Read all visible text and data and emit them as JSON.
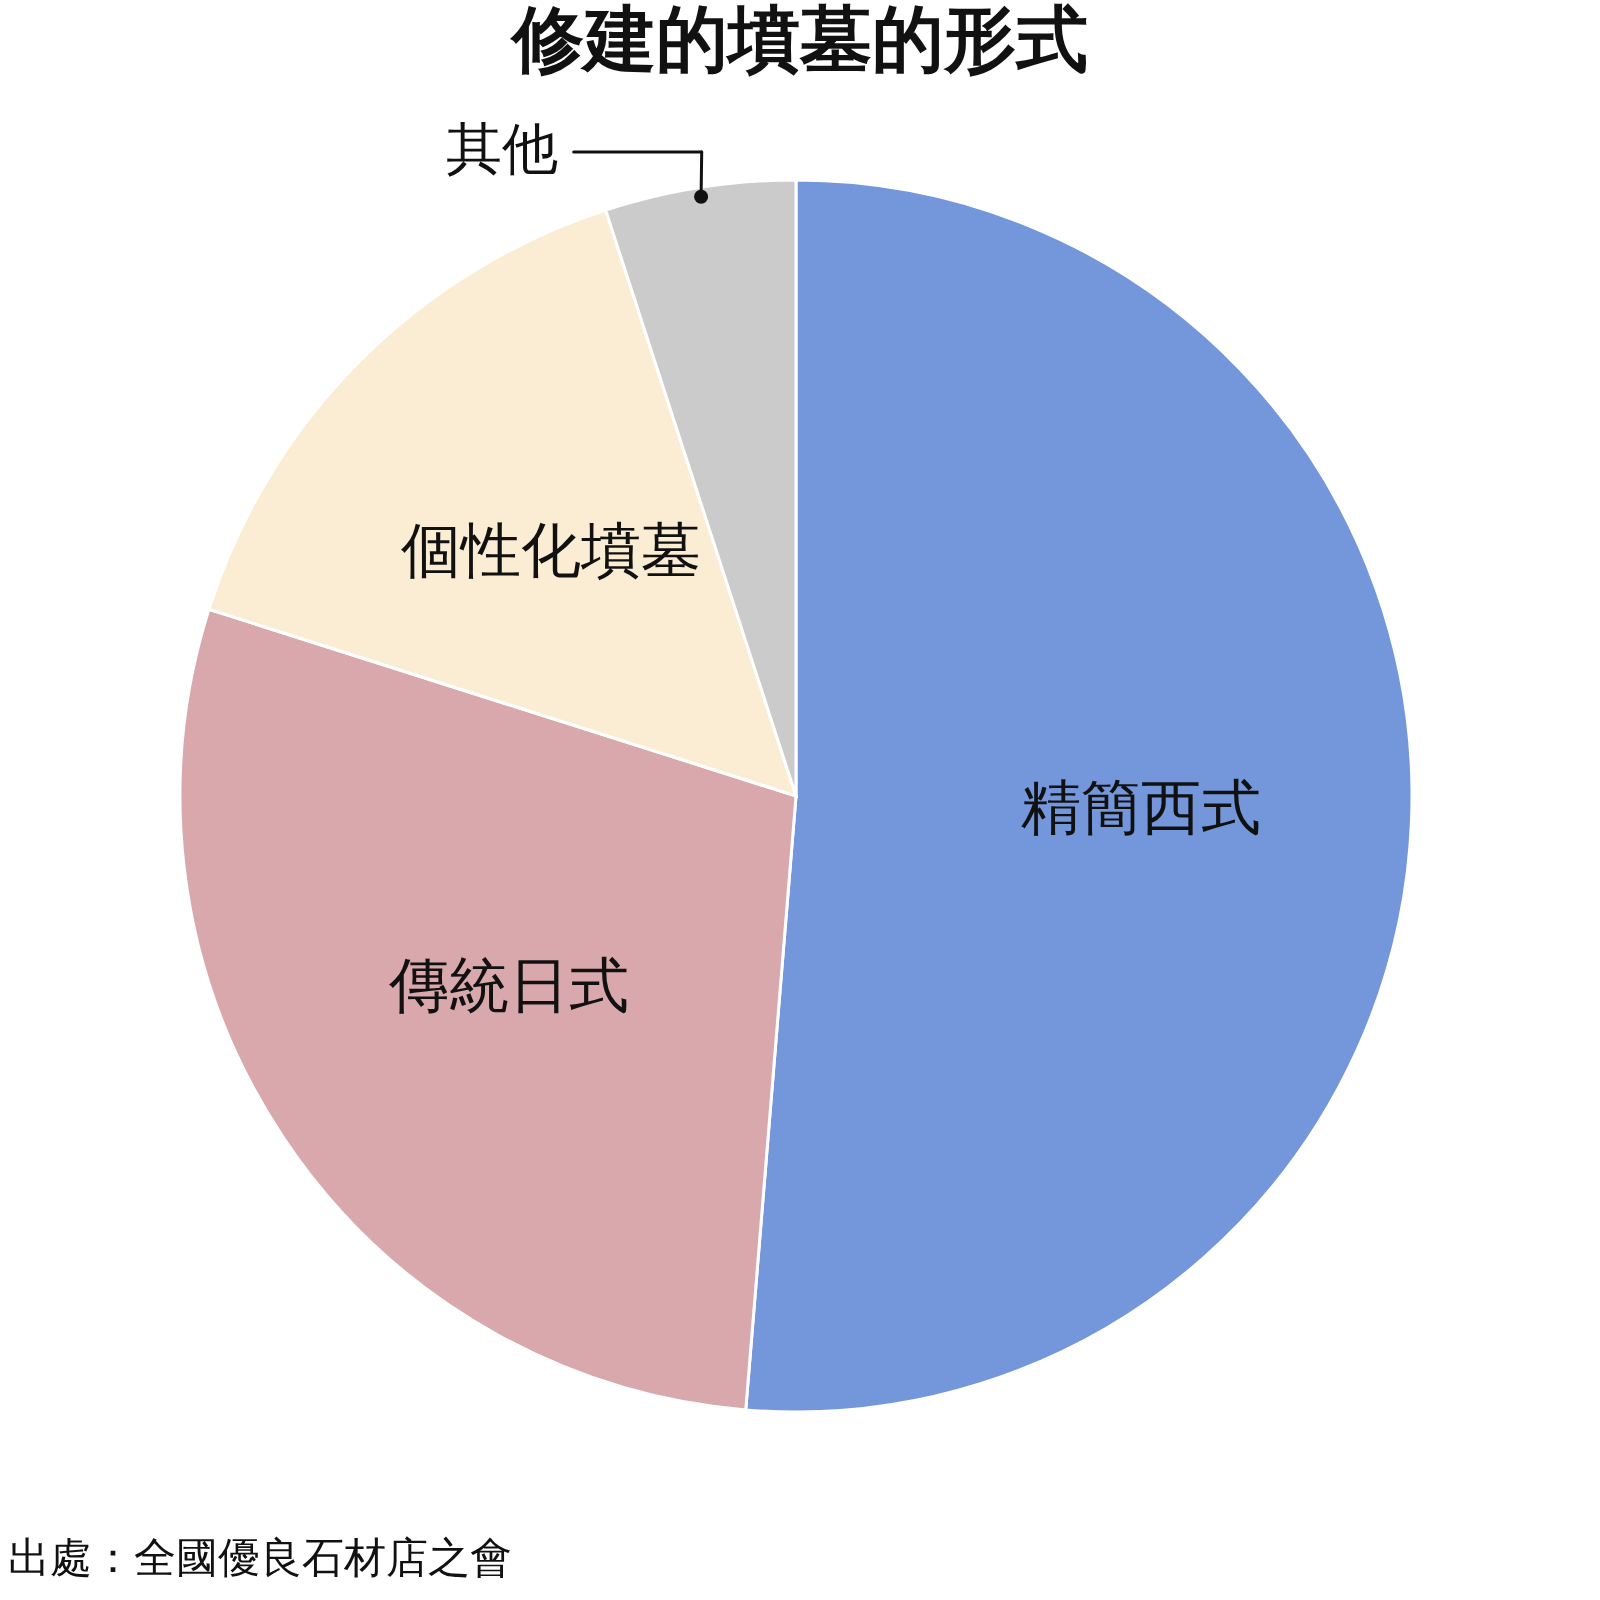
{
  "chart_data": {
    "type": "pie",
    "title": "修建的墳墓的形式",
    "categories": [
      "精簡西式",
      "傳統日式",
      "個性化墳墓",
      "其他"
    ],
    "values": [
      51.3,
      28.6,
      15.1,
      5.0
    ],
    "colors": [
      "#7497db",
      "#d9a8ac",
      "#fbedd3",
      "#cbcbcb"
    ],
    "annotations": [
      "出處：全國優良石材店之會"
    ]
  }
}
